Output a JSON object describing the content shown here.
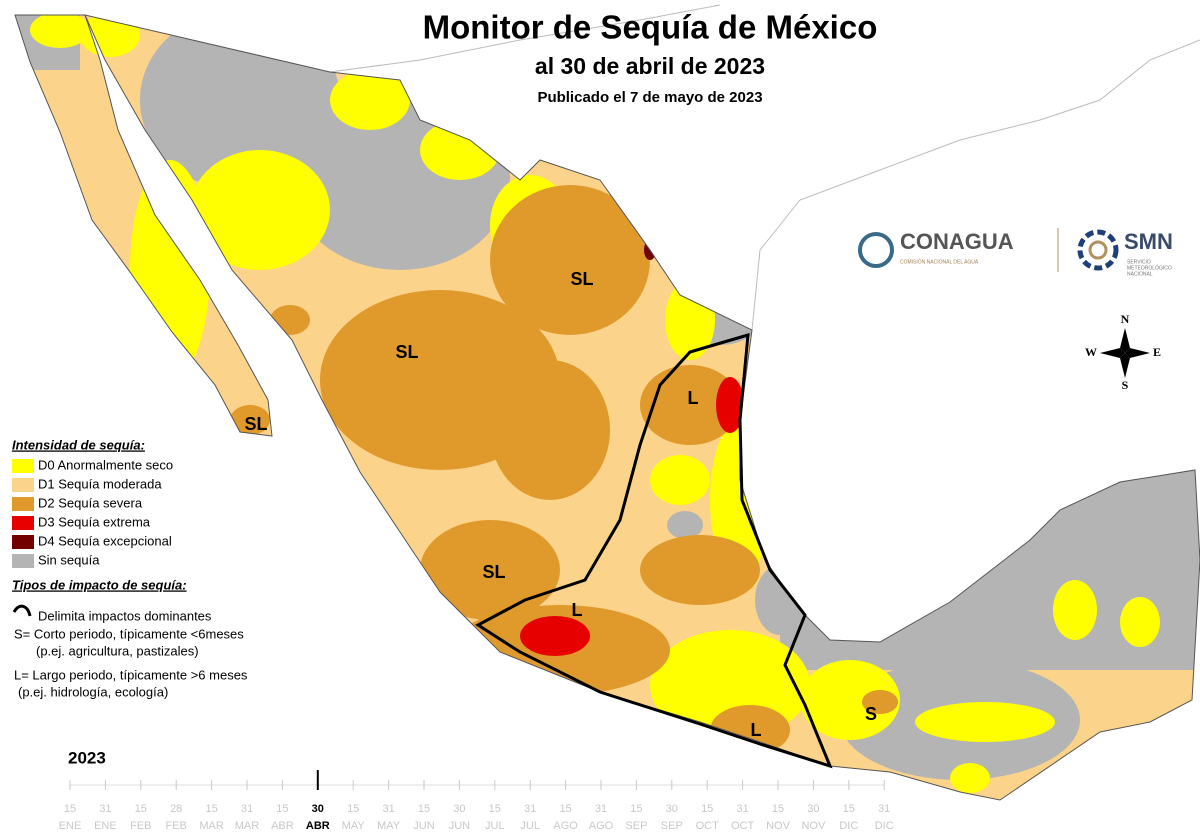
{
  "header": {
    "title": "Monitor de Sequía de México",
    "subtitle": "al 30 de abril de 2023",
    "published": "Publicado el 7 de mayo de 2023"
  },
  "logos": {
    "conagua": "CONAGUA",
    "conagua_sub": "COMISIÓN NACIONAL DEL AGUA",
    "smn": "SMN",
    "smn_sub": [
      "SERVICIO",
      "METEOROLÓGICO",
      "NACIONAL"
    ]
  },
  "compass": {
    "n": "N",
    "w": "W",
    "e": "E",
    "s": "S"
  },
  "legend": {
    "title": "Intensidad de sequía:",
    "items": [
      {
        "label": "D0 Anormalmente seco",
        "color": "#ffff00"
      },
      {
        "label": "D1 Sequía moderada",
        "color": "#fcd38a"
      },
      {
        "label": "D2 Sequía severa",
        "color": "#e09a2b"
      },
      {
        "label": "D3 Sequía extrema",
        "color": "#e60000"
      },
      {
        "label": "D4 Sequía excepcional",
        "color": "#730000"
      },
      {
        "label": "Sin sequía",
        "color": "#b4b4b4"
      }
    ]
  },
  "impacts": {
    "title": "Tipos de impacto de sequía:",
    "items": [
      "Delimita impactos dominantes",
      "S= Corto periodo, típicamente <6meses",
      "(p.ej. agricultura, pastizales)",
      "L= Largo periodo, típicamente >6 meses",
      "(p.ej. hidrología, ecología)"
    ]
  },
  "map_labels": [
    "SL",
    "SL",
    "SL",
    "SL",
    "L",
    "L",
    "L",
    "S"
  ],
  "timeline": {
    "year": "2023",
    "ticks": [
      {
        "day": "15",
        "month": "ENE"
      },
      {
        "day": "31",
        "month": "ENE"
      },
      {
        "day": "15",
        "month": "FEB"
      },
      {
        "day": "28",
        "month": "FEB"
      },
      {
        "day": "15",
        "month": "MAR"
      },
      {
        "day": "31",
        "month": "MAR"
      },
      {
        "day": "15",
        "month": "ABR"
      },
      {
        "day": "30",
        "month": "ABR",
        "current": true
      },
      {
        "day": "15",
        "month": "MAY"
      },
      {
        "day": "31",
        "month": "MAY"
      },
      {
        "day": "15",
        "month": "JUN"
      },
      {
        "day": "30",
        "month": "JUN"
      },
      {
        "day": "15",
        "month": "JUL"
      },
      {
        "day": "31",
        "month": "JUL"
      },
      {
        "day": "15",
        "month": "AGO"
      },
      {
        "day": "31",
        "month": "AGO"
      },
      {
        "day": "15",
        "month": "SEP"
      },
      {
        "day": "30",
        "month": "SEP"
      },
      {
        "day": "15",
        "month": "OCT"
      },
      {
        "day": "31",
        "month": "OCT"
      },
      {
        "day": "15",
        "month": "NOV"
      },
      {
        "day": "30",
        "month": "NOV"
      },
      {
        "day": "15",
        "month": "DIC"
      },
      {
        "day": "31",
        "month": "DIC"
      }
    ]
  }
}
